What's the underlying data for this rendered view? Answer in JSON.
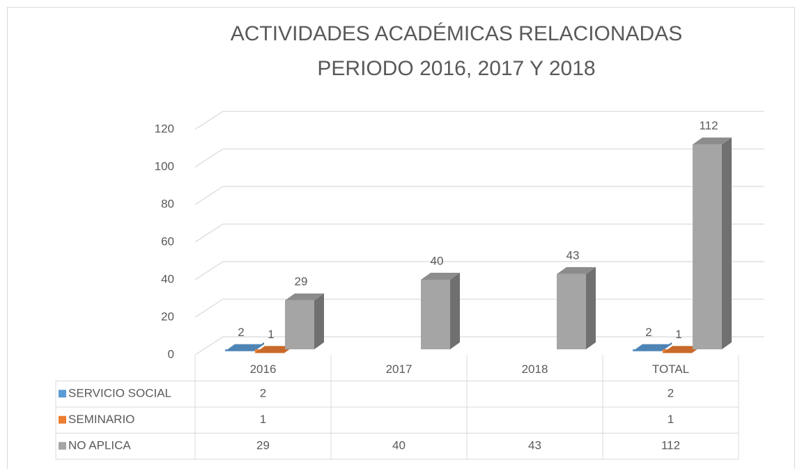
{
  "chart_data": {
    "type": "bar3d",
    "title": [
      "ACTIVIDADES ACADÉMICAS RELACIONADAS",
      "PERIODO  2016, 2017 Y 2018"
    ],
    "categories": [
      "2016",
      "2017",
      "2018",
      "TOTAL"
    ],
    "series": [
      {
        "name": "SERVICIO SOCIAL",
        "color": "#5b9bd5",
        "values": [
          2,
          null,
          null,
          2
        ]
      },
      {
        "name": "SEMINARIO",
        "color": "#ed7d31",
        "values": [
          1,
          null,
          null,
          1
        ]
      },
      {
        "name": "NO APLICA",
        "color": "#a5a5a5",
        "values": [
          29,
          40,
          43,
          112
        ]
      }
    ],
    "ylim": [
      0,
      120
    ],
    "yticks": [
      0,
      20,
      40,
      60,
      80,
      100,
      120
    ],
    "grid": true,
    "data_table": true
  }
}
